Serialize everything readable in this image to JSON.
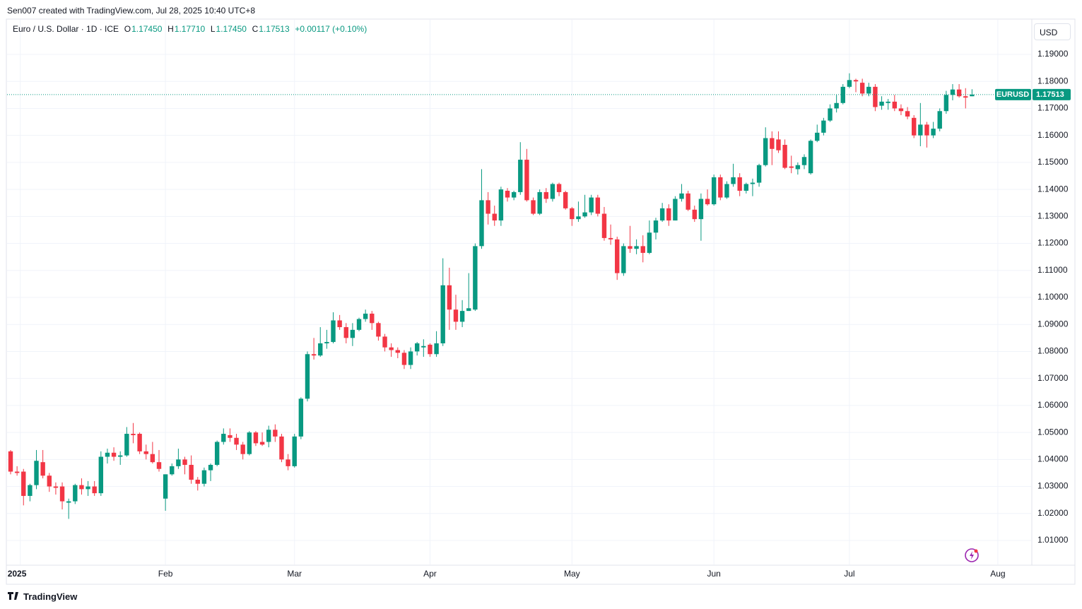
{
  "attribution": "Sen007 created with TradingView.com, Jul 28, 2025 10:40 UTC+8",
  "legend": {
    "title": "Euro / U.S. Dollar · 1D · ICE",
    "o_label": "O",
    "o": "1.17450",
    "h_label": "H",
    "h": "1.17710",
    "l_label": "L",
    "l": "1.17450",
    "c_label": "C",
    "c": "1.17513",
    "change": "+0.00117 (+0.10%)"
  },
  "currency": "USD",
  "symbol_tag": "EURUSD",
  "last_price_label": "1.17513",
  "brand": "TradingView",
  "chart_data": {
    "type": "candlestick",
    "up_color": "#089981",
    "down_color": "#f23645",
    "grid": true,
    "ylim": [
      1.0,
      1.2
    ],
    "yticks": [
      {
        "value": 1.01,
        "label": "1.01000"
      },
      {
        "value": 1.02,
        "label": "1.02000"
      },
      {
        "value": 1.03,
        "label": "1.03000"
      },
      {
        "value": 1.04,
        "label": "1.04000"
      },
      {
        "value": 1.05,
        "label": "1.05000"
      },
      {
        "value": 1.06,
        "label": "1.06000"
      },
      {
        "value": 1.07,
        "label": "1.07000"
      },
      {
        "value": 1.08,
        "label": "1.08000"
      },
      {
        "value": 1.09,
        "label": "1.09000"
      },
      {
        "value": 1.1,
        "label": "1.10000"
      },
      {
        "value": 1.11,
        "label": "1.11000"
      },
      {
        "value": 1.12,
        "label": "1.12000"
      },
      {
        "value": 1.13,
        "label": "1.13000"
      },
      {
        "value": 1.14,
        "label": "1.14000"
      },
      {
        "value": 1.15,
        "label": "1.15000"
      },
      {
        "value": 1.16,
        "label": "1.16000"
      },
      {
        "value": 1.17,
        "label": "1.17000"
      },
      {
        "value": 1.18,
        "label": "1.18000"
      },
      {
        "value": 1.19,
        "label": "1.19000"
      }
    ],
    "xticks": [
      {
        "value": 1.5,
        "label": "2025"
      },
      {
        "value": 24,
        "label": "Feb"
      },
      {
        "value": 44,
        "label": "Mar"
      },
      {
        "value": 65,
        "label": "Apr"
      },
      {
        "value": 87,
        "label": "May"
      },
      {
        "value": 109,
        "label": "Jun"
      },
      {
        "value": 130,
        "label": "Jul"
      },
      {
        "value": 153,
        "label": "Aug"
      }
    ],
    "open": [
      1.043,
      1.0355,
      1.0355,
      1.0265,
      1.0305,
      1.039,
      1.034,
      1.03,
      1.03,
      1.024,
      1.0245,
      1.0305,
      1.029,
      1.03,
      1.0275,
      1.041,
      1.0425,
      1.041,
      1.0415,
      1.0495,
      1.0495,
      1.043,
      1.042,
      1.039,
      1.0255,
      1.0345,
      1.0375,
      1.04,
      1.038,
      1.0325,
      1.031,
      1.036,
      1.038,
      1.0465,
      1.049,
      1.048,
      1.0455,
      1.042,
      1.05,
      1.0465,
      1.0465,
      1.051,
      1.0485,
      1.04,
      1.0375,
      1.0485,
      1.0625,
      1.079,
      1.0785,
      1.083,
      1.0835,
      1.0915,
      1.089,
      1.085,
      1.088,
      1.092,
      1.094,
      1.0905,
      1.0855,
      1.0815,
      1.0805,
      1.0795,
      1.075,
      1.08,
      1.0815,
      1.0825,
      1.079,
      1.083,
      1.1045,
      1.0955,
      1.091,
      1.095,
      1.0955,
      1.119,
      1.136,
      1.131,
      1.1285,
      1.1395,
      1.137,
      1.139,
      1.151,
      1.136,
      1.131,
      1.139,
      1.1365,
      1.142,
      1.139,
      1.133,
      1.129,
      1.13,
      1.1315,
      1.137,
      1.131,
      1.122,
      1.1215,
      1.109,
      1.119,
      1.118,
      1.119,
      1.1165,
      1.124,
      1.1285,
      1.133,
      1.1285,
      1.1365,
      1.1385,
      1.1325,
      1.129,
      1.1365,
      1.1345,
      1.1445,
      1.137,
      1.142,
      1.1445,
      1.1395,
      1.142,
      1.1425,
      1.149,
      1.159,
      1.1585,
      1.1565,
      1.1485,
      1.1475,
      1.149,
      1.146,
      1.158,
      1.161,
      1.1655,
      1.17,
      1.172,
      1.178,
      1.1805,
      1.1795,
      1.1755,
      1.178,
      1.171,
      1.172,
      1.1725,
      1.17,
      1.169,
      1.1665,
      1.16,
      1.164,
      1.16,
      1.1625,
      1.169,
      1.175,
      1.177,
      1.1745,
      1.1745
    ],
    "high": [
      1.0435,
      1.0375,
      1.0365,
      1.031,
      1.0435,
      1.0435,
      1.035,
      1.0315,
      1.0315,
      1.0255,
      1.031,
      1.033,
      1.032,
      1.032,
      1.043,
      1.044,
      1.0445,
      1.043,
      1.052,
      1.0535,
      1.05,
      1.0455,
      1.0465,
      1.0435,
      1.0345,
      1.0385,
      1.044,
      1.041,
      1.0415,
      1.0335,
      1.037,
      1.0385,
      1.047,
      1.0515,
      1.0515,
      1.0495,
      1.0465,
      1.0505,
      1.0505,
      1.05,
      1.0525,
      1.053,
      1.0495,
      1.042,
      1.0495,
      1.063,
      1.08,
      1.085,
      1.089,
      1.088,
      1.0945,
      1.0935,
      1.0905,
      1.0905,
      1.0925,
      1.0955,
      1.095,
      1.091,
      1.0865,
      1.083,
      1.0815,
      1.0805,
      1.0815,
      1.0835,
      1.0845,
      1.083,
      1.0875,
      1.1145,
      1.111,
      1.101,
      1.099,
      1.109,
      1.12,
      1.1475,
      1.139,
      1.134,
      1.141,
      1.1405,
      1.1395,
      1.1575,
      1.155,
      1.137,
      1.14,
      1.1405,
      1.1425,
      1.1425,
      1.1395,
      1.1335,
      1.1355,
      1.138,
      1.138,
      1.138,
      1.1335,
      1.127,
      1.1225,
      1.12,
      1.1265,
      1.1215,
      1.123,
      1.1285,
      1.1295,
      1.135,
      1.1345,
      1.1375,
      1.142,
      1.1395,
      1.134,
      1.1385,
      1.14,
      1.1455,
      1.1455,
      1.143,
      1.1495,
      1.146,
      1.1425,
      1.144,
      1.1495,
      1.163,
      1.1615,
      1.1615,
      1.1585,
      1.1525,
      1.15,
      1.153,
      1.1585,
      1.164,
      1.1665,
      1.1715,
      1.175,
      1.179,
      1.183,
      1.181,
      1.181,
      1.1795,
      1.179,
      1.1745,
      1.1735,
      1.175,
      1.1715,
      1.1705,
      1.1675,
      1.172,
      1.165,
      1.165,
      1.17,
      1.1765,
      1.179,
      1.179,
      1.1775,
      1.1771
    ],
    "low": [
      1.0345,
      1.034,
      1.023,
      1.0245,
      1.029,
      1.033,
      1.028,
      1.027,
      1.0215,
      1.018,
      1.0235,
      1.027,
      1.0265,
      1.0265,
      1.0265,
      1.0385,
      1.0395,
      1.038,
      1.041,
      1.046,
      1.042,
      1.04,
      1.0385,
      1.0355,
      1.021,
      1.034,
      1.0365,
      1.0345,
      1.031,
      1.0285,
      1.03,
      1.032,
      1.0375,
      1.0455,
      1.0465,
      1.0435,
      1.04,
      1.0415,
      1.045,
      1.045,
      1.0445,
      1.0465,
      1.039,
      1.036,
      1.037,
      1.0475,
      1.0615,
      1.077,
      1.078,
      1.081,
      1.083,
      1.088,
      1.083,
      1.082,
      1.0875,
      1.091,
      1.088,
      1.084,
      1.08,
      1.078,
      1.0775,
      1.0735,
      1.0735,
      1.0785,
      1.078,
      1.078,
      1.078,
      1.082,
      1.088,
      1.088,
      1.089,
      1.095,
      1.095,
      1.118,
      1.127,
      1.1265,
      1.1265,
      1.1355,
      1.136,
      1.138,
      1.1355,
      1.1305,
      1.1305,
      1.135,
      1.1355,
      1.1375,
      1.1325,
      1.1265,
      1.128,
      1.1295,
      1.1305,
      1.13,
      1.121,
      1.1195,
      1.1065,
      1.108,
      1.1165,
      1.116,
      1.113,
      1.116,
      1.1215,
      1.128,
      1.1265,
      1.1285,
      1.1355,
      1.132,
      1.128,
      1.121,
      1.134,
      1.134,
      1.136,
      1.1365,
      1.141,
      1.1375,
      1.1385,
      1.1375,
      1.141,
      1.1485,
      1.149,
      1.1535,
      1.1475,
      1.146,
      1.1455,
      1.1475,
      1.1455,
      1.1575,
      1.16,
      1.165,
      1.1685,
      1.1715,
      1.1775,
      1.176,
      1.1745,
      1.1745,
      1.169,
      1.1695,
      1.1695,
      1.169,
      1.1675,
      1.166,
      1.159,
      1.156,
      1.1555,
      1.159,
      1.1615,
      1.168,
      1.173,
      1.174,
      1.17,
      1.1745
    ],
    "close": [
      1.0355,
      1.035,
      1.0265,
      1.0305,
      1.0395,
      1.034,
      1.03,
      1.0295,
      1.0245,
      1.0245,
      1.0305,
      1.029,
      1.03,
      1.0275,
      1.041,
      1.0425,
      1.041,
      1.0415,
      1.0495,
      1.049,
      1.043,
      1.042,
      1.039,
      1.0365,
      1.0345,
      1.0375,
      1.04,
      1.038,
      1.0325,
      1.031,
      1.036,
      1.038,
      1.0465,
      1.0495,
      1.048,
      1.0455,
      1.042,
      1.05,
      1.046,
      1.0455,
      1.051,
      1.0485,
      1.04,
      1.0375,
      1.0485,
      1.0625,
      1.079,
      1.0785,
      1.083,
      1.0835,
      1.0915,
      1.089,
      1.085,
      1.088,
      1.092,
      1.094,
      1.0905,
      1.0855,
      1.0815,
      1.0805,
      1.0795,
      1.075,
      1.08,
      1.083,
      1.082,
      1.079,
      1.083,
      1.1045,
      1.0955,
      1.091,
      1.095,
      1.096,
      1.119,
      1.136,
      1.131,
      1.1285,
      1.14,
      1.137,
      1.139,
      1.151,
      1.136,
      1.131,
      1.139,
      1.1365,
      1.142,
      1.139,
      1.133,
      1.129,
      1.13,
      1.1315,
      1.137,
      1.131,
      1.122,
      1.1215,
      1.109,
      1.119,
      1.118,
      1.119,
      1.1165,
      1.124,
      1.1285,
      1.133,
      1.1285,
      1.1365,
      1.1385,
      1.1325,
      1.129,
      1.1365,
      1.1345,
      1.1445,
      1.137,
      1.142,
      1.1445,
      1.1395,
      1.142,
      1.1425,
      1.149,
      1.159,
      1.155,
      1.1545,
      1.148,
      1.148,
      1.149,
      1.152,
      1.158,
      1.161,
      1.1655,
      1.17,
      1.172,
      1.178,
      1.1805,
      1.18,
      1.1755,
      1.178,
      1.1705,
      1.1725,
      1.1725,
      1.17,
      1.169,
      1.167,
      1.16,
      1.164,
      1.16,
      1.1625,
      1.169,
      1.175,
      1.177,
      1.1745,
      1.174,
      1.17513
    ]
  }
}
